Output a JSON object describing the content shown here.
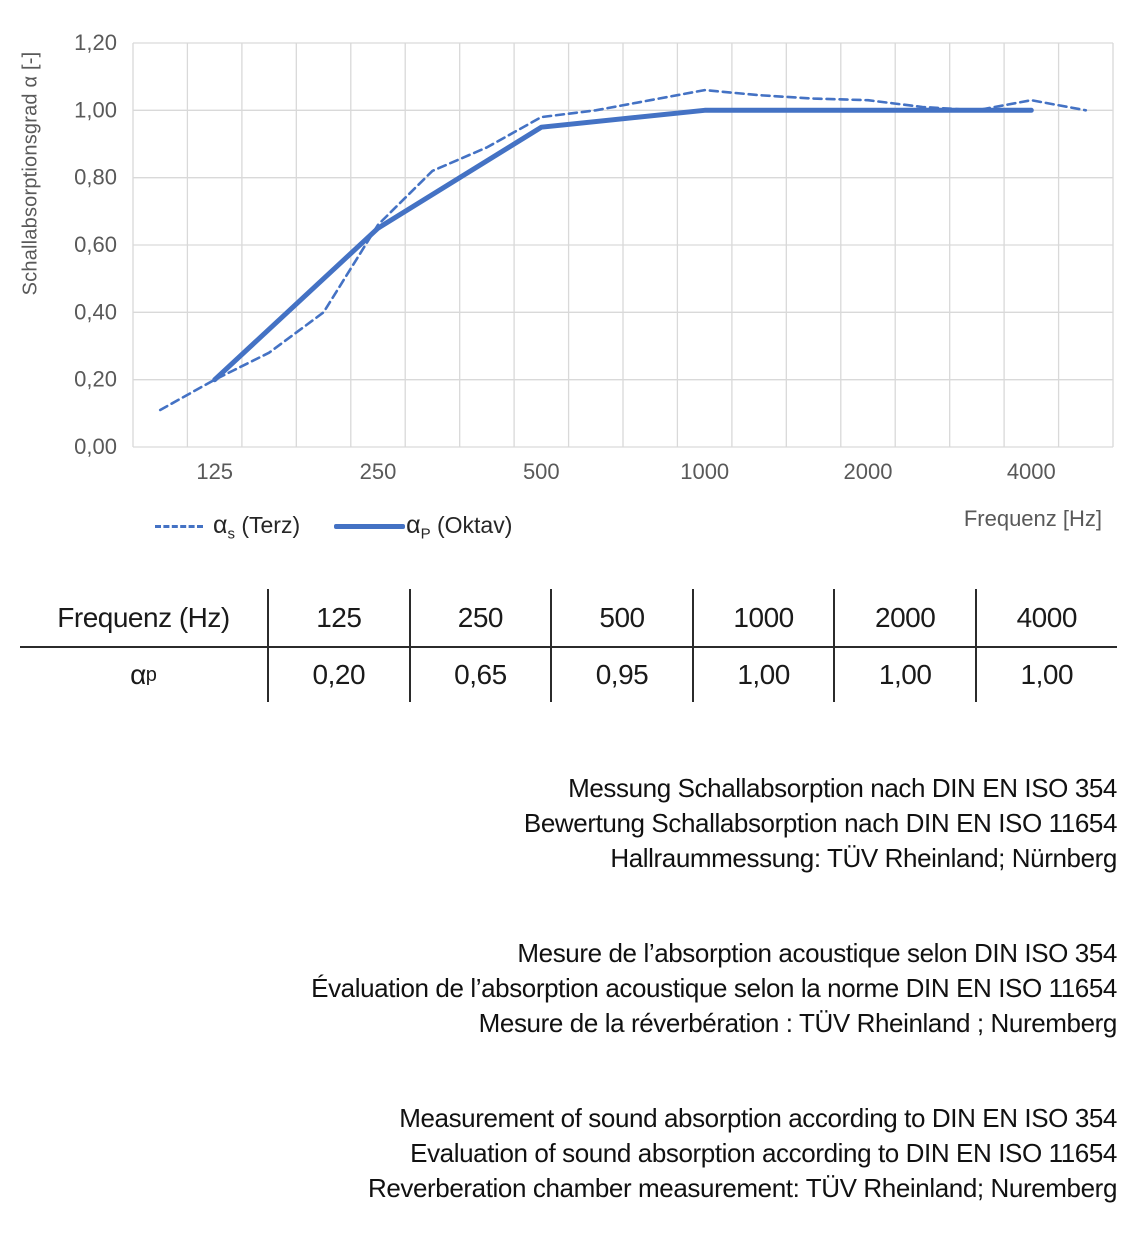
{
  "chart_data": {
    "type": "line",
    "x_axis_label": "Frequenz [Hz]",
    "y_axis_label": "Schallabsorptionsgrad α [-]",
    "x_scale": "log-category-third-octave",
    "ylim": [
      0,
      1.2
    ],
    "grid": true,
    "line_color": "#4472C4",
    "grid_color": "#d9d9d9",
    "categories": [
      100,
      125,
      160,
      200,
      250,
      315,
      400,
      500,
      630,
      800,
      1000,
      1250,
      1600,
      2000,
      2500,
      3150,
      4000,
      5000
    ],
    "x_ticks": [
      {
        "value": 125,
        "label": "125"
      },
      {
        "value": 250,
        "label": "250"
      },
      {
        "value": 500,
        "label": "500"
      },
      {
        "value": 1000,
        "label": "1000"
      },
      {
        "value": 2000,
        "label": "2000"
      },
      {
        "value": 4000,
        "label": "4000"
      }
    ],
    "y_ticks": [
      {
        "value": 0.0,
        "label": "0,00"
      },
      {
        "value": 0.2,
        "label": "0,20"
      },
      {
        "value": 0.4,
        "label": "0,40"
      },
      {
        "value": 0.6,
        "label": "0,60"
      },
      {
        "value": 0.8,
        "label": "0,80"
      },
      {
        "value": 1.0,
        "label": "1,00"
      },
      {
        "value": 1.2,
        "label": "1,20"
      }
    ],
    "series": [
      {
        "name": "αs (Terz)",
        "style": "dashed",
        "points": [
          {
            "f": 100,
            "a": 0.11
          },
          {
            "f": 125,
            "a": 0.2
          },
          {
            "f": 160,
            "a": 0.28
          },
          {
            "f": 200,
            "a": 0.4
          },
          {
            "f": 250,
            "a": 0.66
          },
          {
            "f": 315,
            "a": 0.82
          },
          {
            "f": 400,
            "a": 0.89
          },
          {
            "f": 500,
            "a": 0.98
          },
          {
            "f": 630,
            "a": 1.0
          },
          {
            "f": 800,
            "a": 1.03
          },
          {
            "f": 1000,
            "a": 1.06
          },
          {
            "f": 1250,
            "a": 1.045
          },
          {
            "f": 1600,
            "a": 1.035
          },
          {
            "f": 2000,
            "a": 1.03
          },
          {
            "f": 2500,
            "a": 1.01
          },
          {
            "f": 3150,
            "a": 1.0
          },
          {
            "f": 4000,
            "a": 1.03
          },
          {
            "f": 5000,
            "a": 1.0
          }
        ]
      },
      {
        "name": "αP (Oktav)",
        "style": "solid",
        "points": [
          {
            "f": 125,
            "a": 0.2
          },
          {
            "f": 250,
            "a": 0.65
          },
          {
            "f": 500,
            "a": 0.95
          },
          {
            "f": 1000,
            "a": 1.0
          },
          {
            "f": 2000,
            "a": 1.0
          },
          {
            "f": 4000,
            "a": 1.0
          }
        ]
      }
    ]
  },
  "axis": {
    "y_title": "Schallabsorptionsgrad α [-]",
    "x_title": "Frequenz [Hz]"
  },
  "legend": {
    "terz": {
      "symbol": "α",
      "sub": "s",
      "text": " (Terz)"
    },
    "oktav": {
      "symbol": "α",
      "sub": "P",
      "text": " (Oktav)"
    }
  },
  "table": {
    "header": [
      "Frequenz (Hz)",
      "125",
      "250",
      "500",
      "1000",
      "2000",
      "4000"
    ],
    "row_label": {
      "symbol": "α",
      "sub": "p"
    },
    "values": [
      "0,20",
      "0,65",
      "0,95",
      "1,00",
      "1,00",
      "1,00"
    ]
  },
  "notes": {
    "german": [
      "Messung Schallabsorption nach DIN EN ISO 354",
      "Bewertung Schallabsorption nach DIN EN ISO 11654",
      "Hallraummessung: TÜV Rheinland; Nürnberg"
    ],
    "french": [
      "Mesure de l’absorption acoustique selon DIN ISO 354",
      "Évaluation de l’absorption acoustique selon la norme DIN EN ISO 11654",
      "Mesure de la réverbération : TÜV Rheinland ; Nuremberg"
    ],
    "english": [
      "Measurement of sound absorption according to DIN EN ISO 354",
      "Evaluation of sound absorption according to DIN EN ISO 11654",
      "Reverberation chamber measurement: TÜV Rheinland; Nuremberg"
    ]
  }
}
